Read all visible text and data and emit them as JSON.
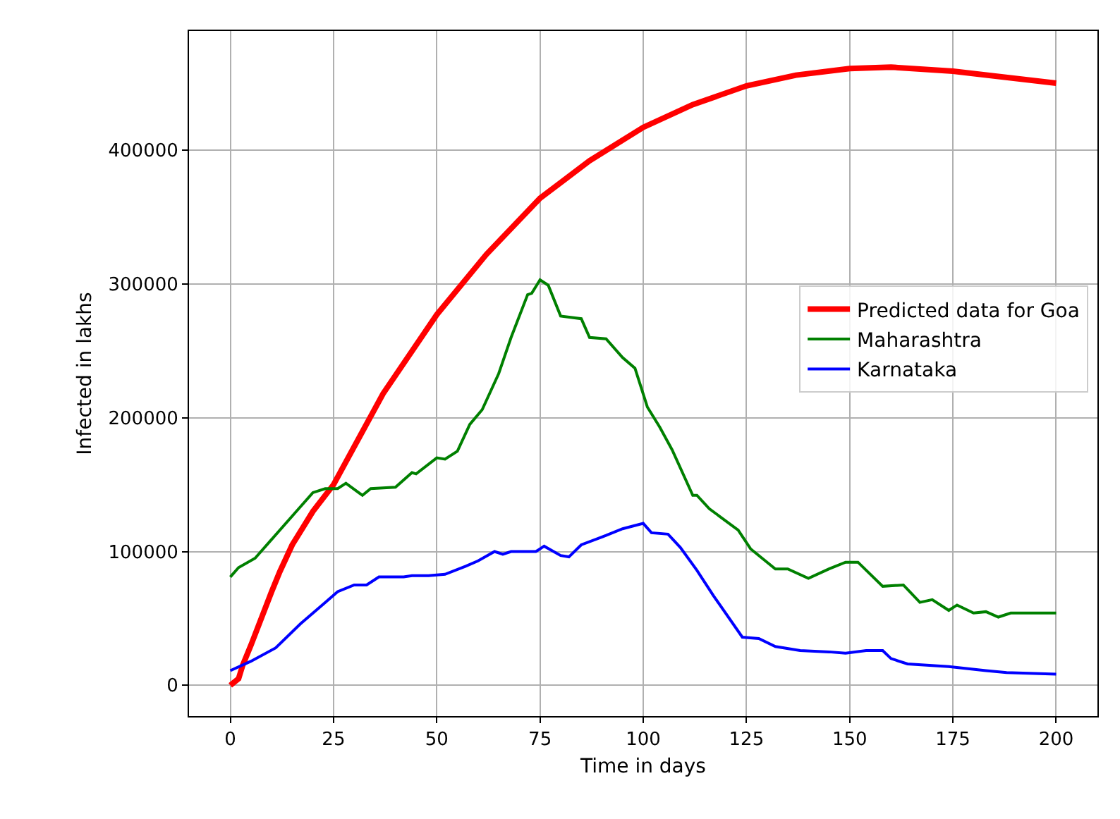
{
  "chart_data": {
    "type": "line",
    "xlabel": "Time in days",
    "ylabel": "Infected in lakhs",
    "xlim": [
      -10,
      210
    ],
    "ylim": [
      -23000,
      489000
    ],
    "xticks": [
      0,
      25,
      50,
      75,
      100,
      125,
      150,
      175,
      200
    ],
    "yticks": [
      0,
      100000,
      200000,
      300000,
      400000
    ],
    "grid": true,
    "legend": "right",
    "marker": "none",
    "line_style": "solid",
    "series": [
      {
        "name": "Predicted data for Goa",
        "color": "#ff0000",
        "x": [
          0,
          2,
          3,
          5,
          10,
          12,
          15,
          20,
          25,
          37,
          50,
          62,
          75,
          87,
          100,
          112,
          125,
          137,
          150,
          160,
          175,
          200
        ],
        "values": [
          0,
          5000,
          15000,
          30000,
          70000,
          85000,
          105000,
          130000,
          150000,
          218000,
          277000,
          322000,
          364000,
          392000,
          417000,
          434000,
          448000,
          456000,
          461000,
          462000,
          459000,
          450000
        ]
      },
      {
        "name": "Maharashtra",
        "color": "#008000",
        "x": [
          0,
          2,
          6,
          10,
          16,
          20,
          23,
          26,
          28,
          32,
          34,
          40,
          44,
          45,
          50,
          52,
          55,
          58,
          61,
          65,
          68,
          72,
          73,
          75,
          77,
          80,
          85,
          87,
          91,
          95,
          98,
          101,
          104,
          107,
          112,
          113,
          116,
          123,
          126,
          132,
          135,
          140,
          145,
          149,
          152,
          158,
          163,
          167,
          170,
          174,
          176,
          180,
          183,
          186,
          189,
          200
        ],
        "values": [
          81000,
          88000,
          95000,
          109000,
          130000,
          144000,
          147000,
          147000,
          151000,
          142000,
          147000,
          148000,
          159000,
          158000,
          170000,
          169000,
          175000,
          195000,
          206000,
          233000,
          260000,
          292000,
          293000,
          303000,
          299000,
          276000,
          274000,
          260000,
          259000,
          245000,
          237000,
          208000,
          193000,
          176000,
          142000,
          142000,
          132000,
          116000,
          102000,
          87000,
          87000,
          80000,
          87000,
          92000,
          92000,
          74000,
          75000,
          62000,
          64000,
          56000,
          60000,
          54000,
          55000,
          51000,
          54000,
          54000
        ]
      },
      {
        "name": "Karnataka",
        "color": "#0000ff",
        "x": [
          0,
          5,
          11,
          17,
          23,
          26,
          30,
          33,
          36,
          42,
          44,
          48,
          52,
          57,
          60,
          64,
          66,
          68,
          74,
          76,
          80,
          82,
          85,
          91,
          95,
          100,
          102,
          106,
          109,
          113,
          117,
          124,
          128,
          132,
          138,
          145,
          149,
          154,
          158,
          160,
          164,
          174,
          183,
          188,
          200
        ],
        "values": [
          11000,
          18000,
          28000,
          46000,
          62000,
          70000,
          75000,
          75000,
          81000,
          81000,
          82000,
          82000,
          83000,
          89000,
          93000,
          100000,
          98000,
          100000,
          100000,
          104000,
          97000,
          96000,
          105000,
          112000,
          117000,
          121000,
          114000,
          113000,
          103000,
          86000,
          67000,
          36000,
          35000,
          29000,
          26000,
          25000,
          24000,
          26000,
          26000,
          20000,
          16000,
          14000,
          11000,
          9500,
          8400
        ]
      }
    ]
  }
}
